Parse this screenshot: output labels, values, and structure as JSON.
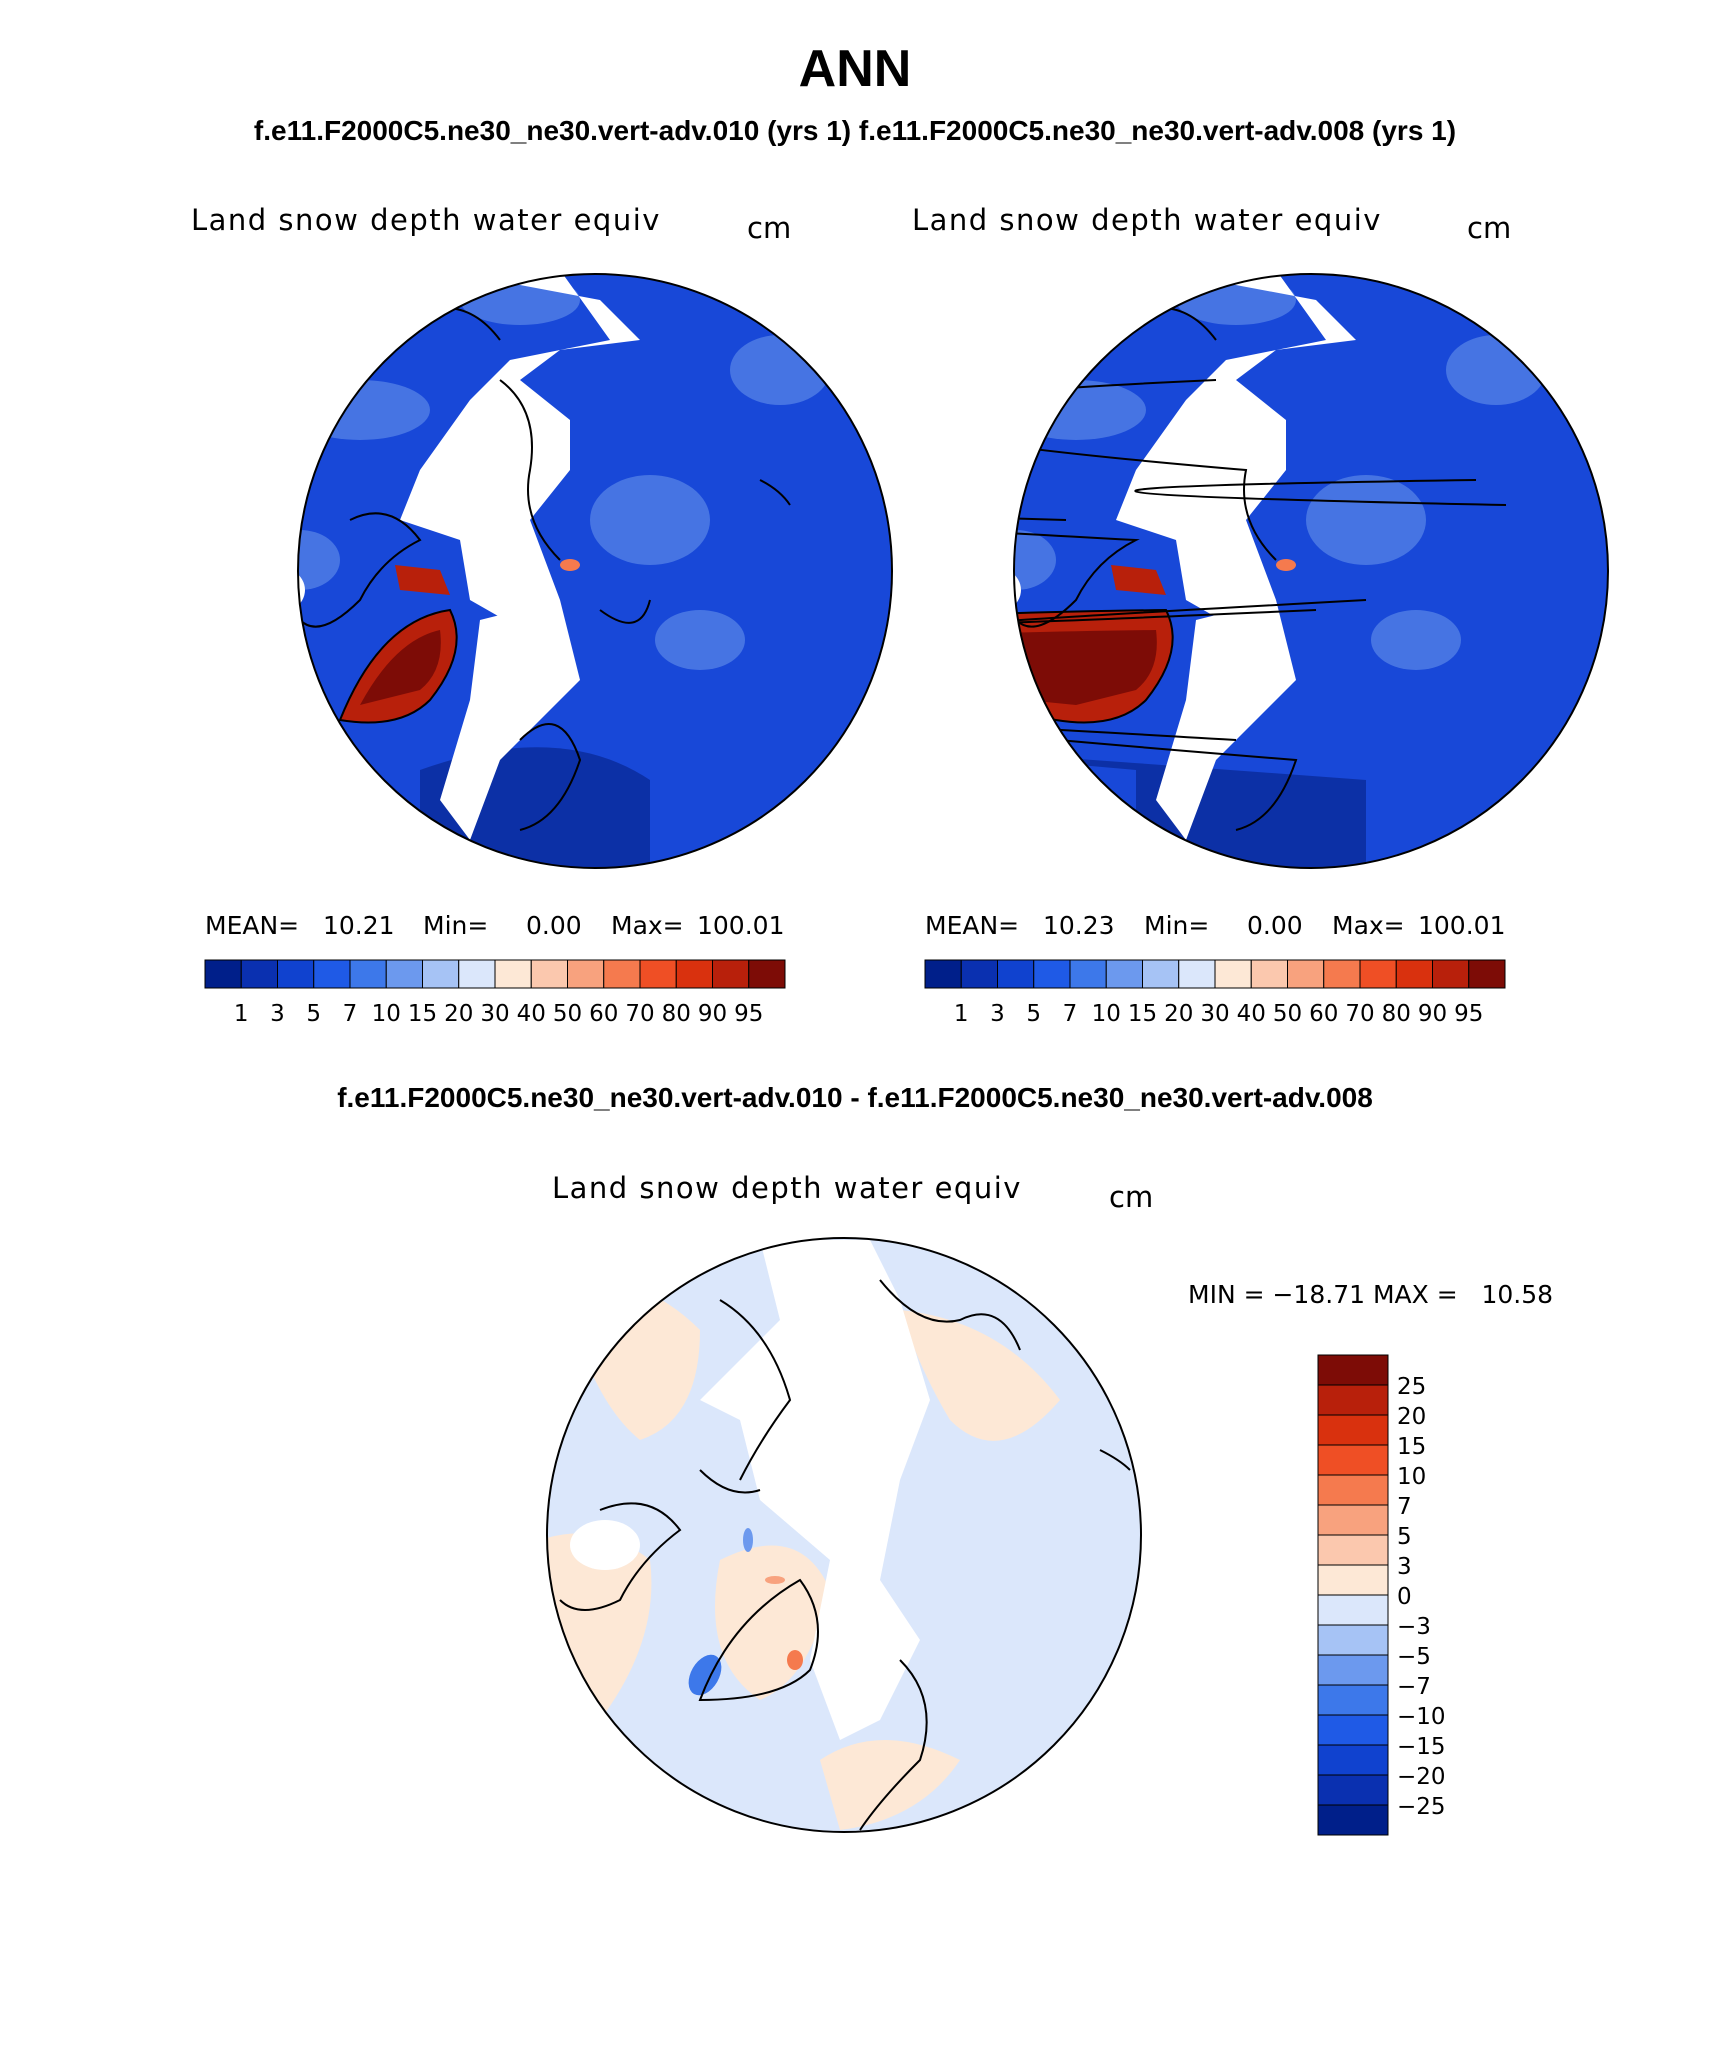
{
  "figure": {
    "title": "ANN",
    "subtitle": "f.e11.F2000C5.ne30_ne30.vert-adv.010 (yrs 1) f.e11.F2000C5.ne30_ne30.vert-adv.008 (yrs 1)",
    "diff_title": "f.e11.F2000C5.ne30_ne30.vert-adv.010 - f.e11.F2000C5.ne30_ne30.vert-adv.008"
  },
  "panels": [
    {
      "variable": "Land snow depth water equiv",
      "units": "cm",
      "stats": {
        "mean_label": "MEAN=",
        "mean": "10.21",
        "min_label": "Min=",
        "min": "0.00",
        "max_label": "Max=",
        "max": "100.01"
      }
    },
    {
      "variable": "Land snow depth water equiv",
      "units": "cm",
      "stats": {
        "mean_label": "MEAN=",
        "mean": "10.23",
        "min_label": "Min=",
        "min": "0.00",
        "max_label": "Max=",
        "max": "100.01"
      }
    }
  ],
  "diff_panel": {
    "variable": "Land snow depth water equiv",
    "units": "cm",
    "minmax": "MIN = −18.71 MAX =   10.58"
  },
  "colorbar": {
    "levels": [
      "1",
      "3",
      "5",
      "7",
      "10",
      "15",
      "20",
      "30",
      "40",
      "50",
      "60",
      "70",
      "80",
      "90",
      "95"
    ],
    "colors": [
      "#001f8a",
      "#0a30b0",
      "#1042cf",
      "#1f5ae6",
      "#3d78ea",
      "#6c99ee",
      "#a6c3f5",
      "#dbe7fb",
      "#fde8d6",
      "#fbc8ae",
      "#f8a27e",
      "#f57a4e",
      "#ef4f25",
      "#d9310e",
      "#b8200b",
      "#7d0c06"
    ]
  },
  "diff_colorbar": {
    "levels": [
      "25",
      "20",
      "15",
      "10",
      "7",
      "5",
      "3",
      "0",
      "−3",
      "−5",
      "−7",
      "−10",
      "−15",
      "−20",
      "−25"
    ],
    "colors": [
      "#7d0c06",
      "#b8200b",
      "#d9310e",
      "#ef4f25",
      "#f57a4e",
      "#f8a27e",
      "#fbc8ae",
      "#fde8d6",
      "#dbe7fb",
      "#a6c3f5",
      "#6c99ee",
      "#3d78ea",
      "#1f5ae6",
      "#1042cf",
      "#0a30b0",
      "#001f8a"
    ]
  },
  "colors": {
    "map_base": "#1848d8",
    "map_light": "#5a88e8",
    "ocean_blank": "#ffffff",
    "diff_base": "#dbe7fb",
    "diff_warm": "#fde8d6",
    "coast": "#000000"
  }
}
